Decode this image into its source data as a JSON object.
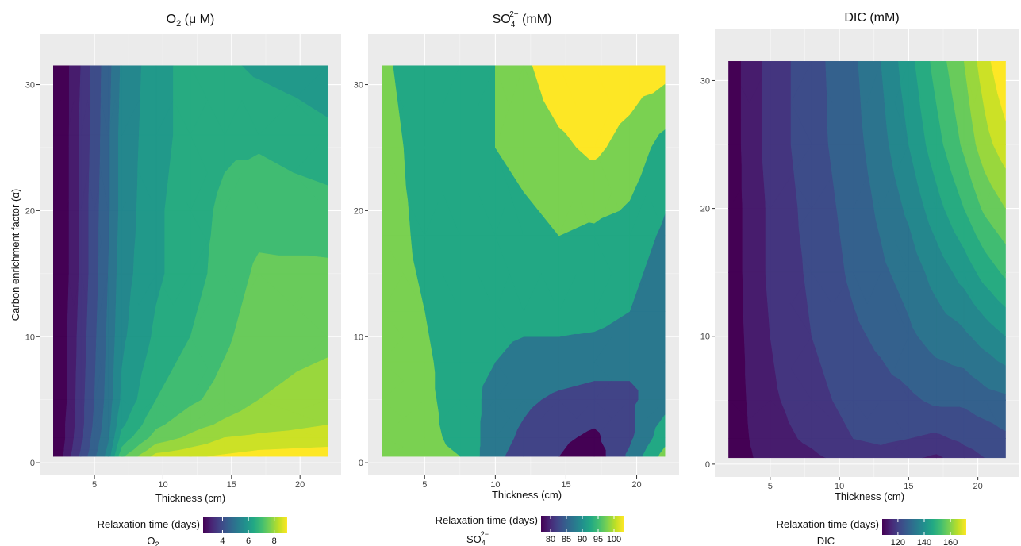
{
  "chart_data": [
    {
      "type": "heatmap",
      "panel": "o2",
      "title": "O2 (μ M)",
      "title_parts": {
        "base": "O",
        "sub": "2",
        "rest": " (μ M)"
      },
      "xlabel": "Thickness (cm)",
      "ylabel": "Carbon enrichment factor (α)",
      "xlim": [
        1,
        23
      ],
      "ylim": [
        -1,
        34
      ],
      "xticks": [
        5,
        10,
        15,
        20
      ],
      "yticks": [
        0,
        10,
        20,
        30
      ],
      "x": [
        2,
        3,
        4,
        5,
        6,
        7,
        9.5,
        12,
        14.5,
        17,
        22
      ],
      "y": [
        0.5,
        1,
        2,
        3,
        5,
        10,
        15,
        20,
        26,
        31.5
      ],
      "z": [
        [
          1.8,
          2.8,
          3.6,
          4.4,
          5.2,
          6.9,
          8.2,
          8.4,
          8.6,
          8.8,
          8.9
        ],
        [
          1.8,
          2.7,
          3.5,
          4.3,
          5.1,
          6.6,
          7.8,
          8.1,
          8.3,
          8.5,
          8.6
        ],
        [
          1.8,
          2.6,
          3.4,
          4.2,
          4.9,
          6.2,
          7.2,
          7.6,
          8.0,
          8.1,
          8.2
        ],
        [
          1.8,
          2.6,
          3.3,
          4.1,
          4.8,
          5.9,
          6.9,
          7.3,
          7.6,
          7.8,
          8.0
        ],
        [
          1.8,
          2.5,
          3.3,
          4.0,
          4.7,
          5.6,
          6.5,
          6.9,
          7.2,
          7.5,
          7.7
        ],
        [
          1.8,
          2.5,
          3.2,
          3.9,
          4.6,
          5.4,
          6.1,
          6.5,
          6.9,
          7.3,
          7.4
        ],
        [
          1.8,
          2.4,
          3.1,
          3.8,
          4.5,
          5.3,
          5.9,
          6.3,
          6.7,
          7.1,
          7.1
        ],
        [
          1.8,
          2.4,
          3.1,
          3.8,
          4.4,
          5.2,
          5.9,
          6.3,
          6.6,
          6.8,
          6.7
        ],
        [
          1.8,
          2.4,
          3.1,
          3.7,
          4.4,
          5.2,
          5.8,
          6.2,
          6.4,
          6.4,
          6.1
        ],
        [
          1.8,
          2.4,
          3.0,
          3.7,
          4.3,
          5.1,
          5.8,
          6.2,
          6.1,
          5.9,
          5.7
        ]
      ],
      "levels": [
        2.5,
        3,
        3.5,
        4,
        4.5,
        5,
        5.5,
        6,
        6.5,
        7,
        7.5,
        8,
        8.5
      ],
      "zlim": [
        1.8,
        9
      ],
      "legend": {
        "title": "Relaxation time (days)",
        "variable": "O2",
        "variable_parts": {
          "base": "O",
          "sub": "2"
        },
        "ticks": [
          4,
          6,
          8
        ],
        "range": [
          2.5,
          9
        ],
        "placement": "bottom"
      }
    },
    {
      "type": "heatmap",
      "panel": "so4",
      "title": "SO42− (mM)",
      "title_parts": {
        "base": "SO",
        "sub": "4",
        "sup": "2−",
        "rest": " (mM)"
      },
      "xlabel": "Thickness (cm)",
      "ylabel": "",
      "xlim": [
        1,
        23
      ],
      "ylim": [
        -1,
        34
      ],
      "xticks": [
        5,
        10,
        15,
        20
      ],
      "yticks": [
        0,
        10,
        20,
        30
      ],
      "x": [
        2,
        5,
        7.5,
        10,
        12,
        14.5,
        17,
        19.5,
        22
      ],
      "y": [
        0.5,
        2,
        5,
        8,
        12,
        18,
        25,
        31.5
      ],
      "z": [
        [
          97,
          96,
          95,
          86,
          83,
          80,
          77,
          86,
          97
        ],
        [
          97,
          96,
          94,
          87,
          84,
          81,
          79,
          84,
          93
        ],
        [
          97,
          96,
          93,
          88,
          86,
          84,
          83,
          84,
          88
        ],
        [
          97,
          96,
          92,
          90,
          89,
          88,
          87,
          86,
          86
        ],
        [
          97,
          95,
          91,
          91,
          91,
          92,
          92,
          90,
          86
        ],
        [
          97,
          94,
          91,
          91,
          93,
          95,
          94,
          93,
          89
        ],
        [
          97,
          93,
          91,
          95,
          97,
          99,
          101,
          98,
          93
        ],
        [
          96,
          92,
          91,
          95,
          99,
          103,
          104,
          103,
          102
        ]
      ],
      "levels": [
        80,
        85,
        90,
        95,
        100
      ],
      "zlim": [
        76,
        104
      ],
      "legend": {
        "title": "Relaxation time (days)",
        "variable": "SO42−",
        "variable_parts": {
          "base": "SO",
          "sub": "4",
          "sup": "2−"
        },
        "ticks": [
          80,
          85,
          90,
          95,
          100
        ],
        "range": [
          77,
          103
        ],
        "placement": "bottom"
      }
    },
    {
      "type": "heatmap",
      "panel": "dic",
      "title": "DIC (mM)",
      "xlabel": "Thickness (cm)",
      "ylabel": "",
      "xlim": [
        1,
        23
      ],
      "ylim": [
        -1,
        34
      ],
      "xticks": [
        5,
        10,
        15,
        20
      ],
      "yticks": [
        0,
        10,
        20,
        30
      ],
      "x": [
        2,
        5,
        8,
        11,
        13,
        15,
        17,
        19,
        20.5,
        22
      ],
      "y": [
        0.5,
        2,
        5,
        10,
        15,
        20,
        25,
        31.5
      ],
      "z": [
        [
          107,
          112,
          114,
          117,
          118,
          116,
          114,
          118,
          120,
          121
        ],
        [
          107,
          113,
          116,
          120,
          121,
          120,
          119,
          121,
          122,
          124
        ],
        [
          107,
          114,
          118,
          122,
          123,
          124,
          126,
          126,
          128,
          129
        ],
        [
          107,
          115,
          120,
          124,
          126,
          129,
          132,
          134,
          137,
          140
        ],
        [
          107,
          116,
          121,
          126,
          129,
          132,
          137,
          142,
          147,
          151
        ],
        [
          107,
          116,
          122,
          127,
          131,
          136,
          143,
          150,
          156,
          160
        ],
        [
          107,
          117,
          123,
          128,
          133,
          140,
          148,
          156,
          163,
          168
        ],
        [
          107,
          117,
          123,
          129,
          135,
          143,
          152,
          160,
          168,
          175
        ]
      ],
      "levels": [
        110,
        115,
        120,
        125,
        130,
        135,
        140,
        145,
        150,
        155,
        160,
        165,
        170
      ],
      "zlim": [
        107,
        175
      ],
      "legend": {
        "title": "Relaxation time (days)",
        "variable": "DIC",
        "ticks": [
          120,
          140,
          160
        ],
        "range": [
          108,
          172
        ],
        "placement": "bottom"
      }
    }
  ]
}
